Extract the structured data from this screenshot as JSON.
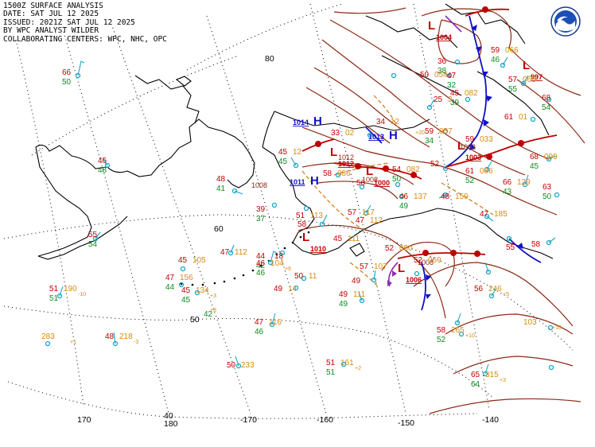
{
  "header": {
    "line1": "1500Z SURFACE ANALYSIS",
    "line2": "DATE: SAT JUL 12 2025",
    "line3": "ISSUED: 2021Z SAT JUL 12 2025",
    "line4": "BY WPC ANALYST WILDER",
    "line5": "COLLABORATING CENTERS: WPC, NHC, OPC"
  },
  "logo": {
    "name": "noaa-logo",
    "text": "NOAA"
  },
  "grid_labels": {
    "lat": [
      {
        "text": "80"
      },
      {
        "text": "60"
      },
      {
        "text": "50"
      },
      {
        "text": "40"
      }
    ],
    "lon": [
      {
        "text": "170"
      },
      {
        "text": "180"
      },
      {
        "text": "-170"
      },
      {
        "text": "-160"
      },
      {
        "text": "-150"
      },
      {
        "text": "-140"
      }
    ]
  },
  "pressure_centers": [
    {
      "type": "H",
      "value": "1014",
      "color": "#1010c8"
    },
    {
      "type": "H",
      "value": "1011",
      "color": "#1010c8"
    },
    {
      "type": "H",
      "value": "1013",
      "color": "#1010c8"
    },
    {
      "type": "L",
      "value": "1012",
      "color": "#c00000"
    },
    {
      "type": "L",
      "value": "1000",
      "color": "#c00000"
    },
    {
      "type": "L",
      "value": "1006",
      "color": "#c00000"
    },
    {
      "type": "L",
      "value": "1003",
      "color": "#c00000"
    },
    {
      "type": "L",
      "value": "997",
      "color": "#c00000"
    },
    {
      "type": "L",
      "value": "1010",
      "color": "#c00000"
    },
    {
      "type": "L",
      "value": "1004",
      "color": "#c00000"
    }
  ],
  "isobar_labels": [
    {
      "text": "1008"
    },
    {
      "text": "1008"
    },
    {
      "text": "1003"
    },
    {
      "text": "1008"
    },
    {
      "text": "1012"
    }
  ],
  "stations": [
    {
      "t": "66",
      "d": "50"
    },
    {
      "t": "46",
      "d": "48"
    },
    {
      "t": "55",
      "d": "54"
    },
    {
      "t": "51",
      "p": "190",
      "d": "51",
      "tend": "-10"
    },
    {
      "p": "283",
      "tend": "+1"
    },
    {
      "t": "48",
      "p": "218",
      "tend": "-3"
    },
    {
      "t": "48",
      "d": "41"
    },
    {
      "t": "47",
      "p": "112"
    },
    {
      "t": "45",
      "p": "105"
    },
    {
      "t": "47",
      "p": "156",
      "d": "44"
    },
    {
      "t": "45",
      "p": "134",
      "d": "45",
      "tend": "+3"
    },
    {
      "d": "42",
      "tend": "+8"
    },
    {
      "t": "44",
      "d": "42"
    },
    {
      "t": "46",
      "p": "104",
      "d": "46",
      "tend": "+6"
    },
    {
      "t": "18"
    },
    {
      "t": "50",
      "p": "11"
    },
    {
      "t": "49",
      "p": "14"
    },
    {
      "t": "47",
      "p": "116",
      "d": "46"
    },
    {
      "t": "50",
      "p": "233"
    },
    {
      "t": "49",
      "p": "111",
      "d": "49"
    },
    {
      "t": "51",
      "p": "161",
      "d": "51",
      "tend": "+2"
    },
    {
      "t": "52",
      "p": "000"
    },
    {
      "t": "58",
      "p": "265",
      "d": "52",
      "tend": "+10"
    },
    {
      "t": "65",
      "p": "315",
      "d": "64",
      "tend": "+3"
    },
    {
      "t": "56",
      "p": "246",
      "tend": "+5"
    },
    {
      "p": "103",
      "tend": "+10"
    },
    {
      "t": "45",
      "p": "12",
      "d": "45"
    },
    {
      "t": "39",
      "d": "37"
    },
    {
      "t": "51",
      "p": "113"
    },
    {
      "t": "58"
    },
    {
      "t": "57",
      "p": "117"
    },
    {
      "t": "58",
      "p": "086"
    },
    {
      "t": "56"
    },
    {
      "t": "54",
      "p": "082",
      "d": "50"
    },
    {
      "t": "46",
      "p": "137",
      "d": "49"
    },
    {
      "t": "48",
      "p": "159"
    },
    {
      "t": "47",
      "p": "185"
    },
    {
      "t": "66",
      "p": "129",
      "d": "43"
    },
    {
      "t": "63",
      "d": "50"
    },
    {
      "t": "58"
    },
    {
      "t": "34",
      "p": "12"
    },
    {
      "t": "33",
      "p": "02"
    },
    {
      "t": "59",
      "p": "057",
      "d": "34"
    },
    {
      "t": "59",
      "p": "033"
    },
    {
      "t": "52"
    },
    {
      "t": "61",
      "p": "086",
      "d": "52"
    },
    {
      "t": "68",
      "p": "099",
      "d": "45"
    },
    {
      "t": "45",
      "p": "082",
      "d": "39"
    },
    {
      "t": "57",
      "p": "065",
      "d": "55"
    },
    {
      "t": "61",
      "p": "01"
    },
    {
      "t": "68",
      "d": "54"
    },
    {
      "t": "59",
      "p": "066",
      "d": "46"
    },
    {
      "t": "36",
      "d": "38"
    },
    {
      "t": "47",
      "d": "32"
    },
    {
      "t": "25",
      "p": "3"
    },
    {
      "t": "50",
      "p": "054"
    },
    {
      "t": "52",
      "p": "069"
    },
    {
      "t": "57",
      "p": "107"
    },
    {
      "t": "45",
      "p": "111"
    },
    {
      "t": "47",
      "p": "112"
    },
    {
      "t": "49"
    },
    {
      "t": "55"
    },
    {
      "tend": "+20"
    }
  ]
}
